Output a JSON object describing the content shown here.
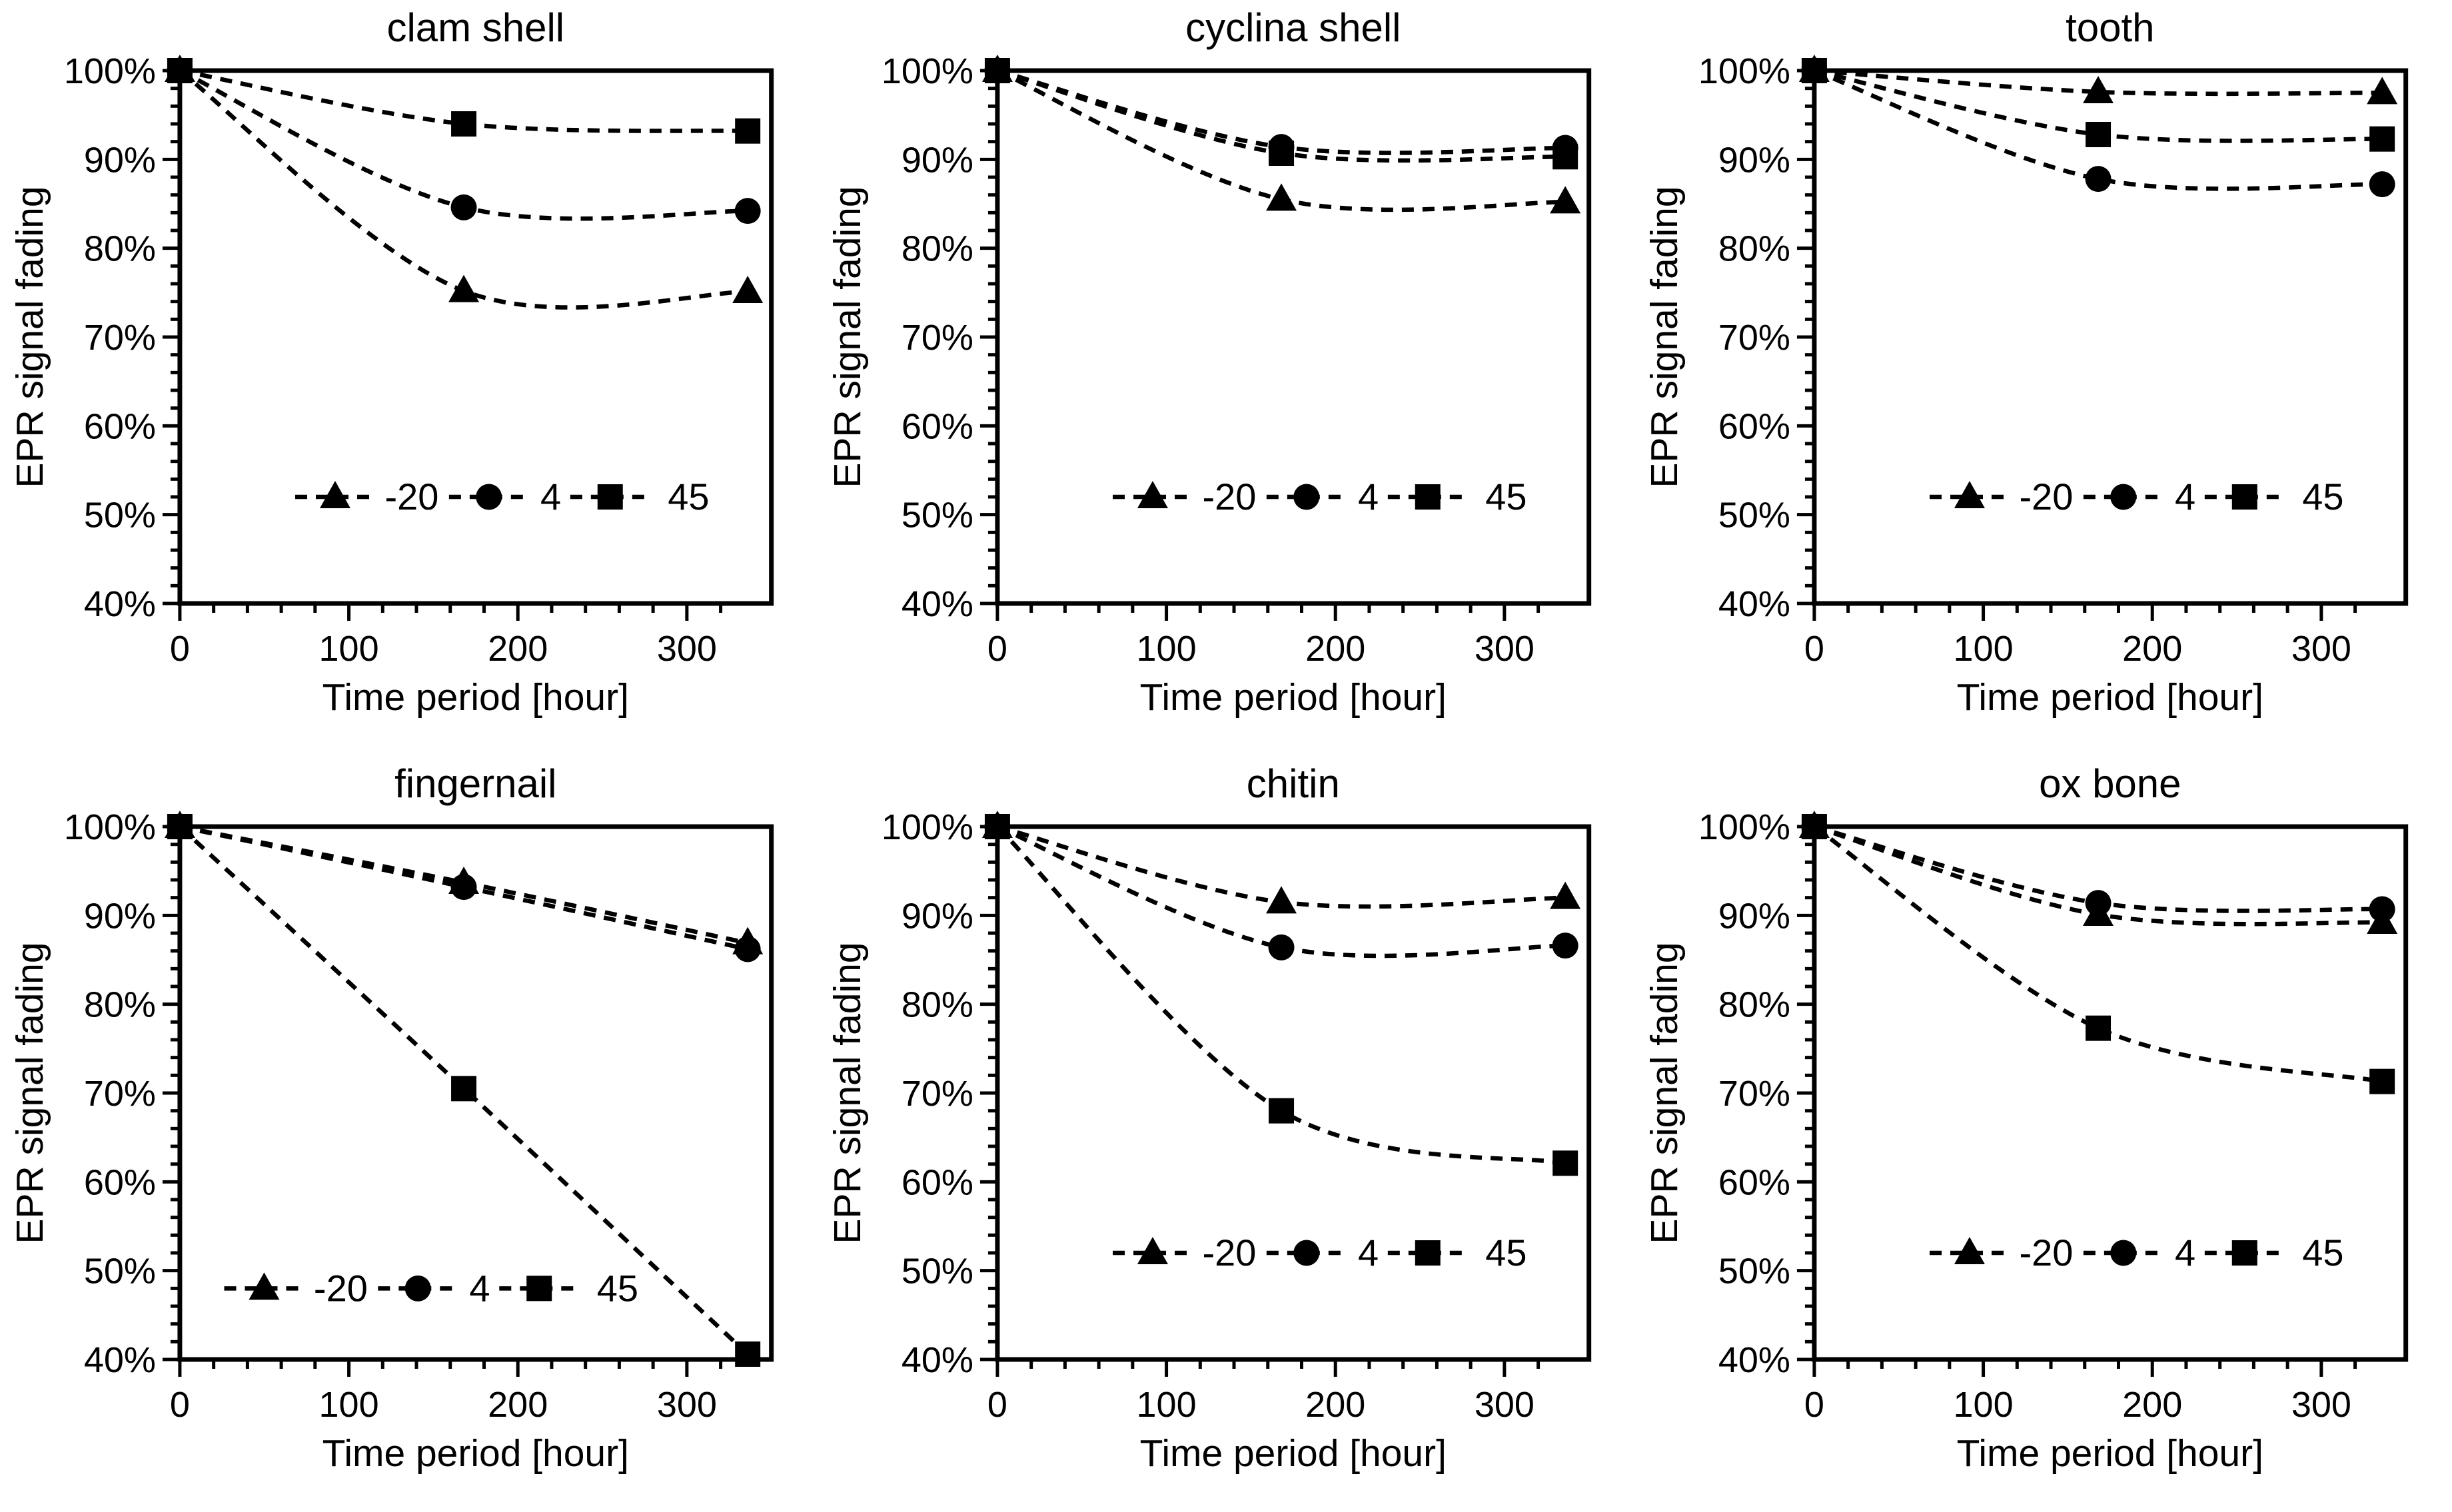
{
  "figure": {
    "background": "#ffffff",
    "ink_color": "#000000",
    "y_axis_label": "EPR signal fading",
    "x_axis_label": "Time period [hour]",
    "y_tick_labels": [
      "100%",
      "90%",
      "80%",
      "70%",
      "60%",
      "50%",
      "40%"
    ],
    "x_tick_labels": [
      "0",
      "100",
      "200",
      "300"
    ],
    "legend_labels": [
      "-20",
      "4",
      "45"
    ],
    "legend_markers": [
      "triangle",
      "circle",
      "square"
    ]
  },
  "chart_data": [
    {
      "type": "line",
      "title": "clam shell",
      "xlabel": "Time period [hour]",
      "ylabel": "EPR signal fading",
      "x": [
        0,
        168,
        336
      ],
      "xlim": [
        0,
        350
      ],
      "ylim": [
        40,
        100
      ],
      "x_major_ticks": [
        0,
        100,
        200,
        300
      ],
      "y_major_step": 10,
      "y_minor_step": 2,
      "x_minor_step": 20,
      "grid": false,
      "legend_position": "inside-bottom-center",
      "legend_y_value": 52,
      "legend_shift": 0,
      "series": [
        {
          "name": "-20",
          "marker": "triangle",
          "linestyle": "dashed",
          "values": [
            100,
            75.2,
            75.1
          ]
        },
        {
          "name": "4",
          "marker": "circle",
          "linestyle": "dashed",
          "values": [
            100,
            84.6,
            84.2
          ]
        },
        {
          "name": "45",
          "marker": "square",
          "linestyle": "dashed",
          "values": [
            100,
            94.0,
            93.2
          ]
        }
      ]
    },
    {
      "type": "line",
      "title": "cyclina shell",
      "xlabel": "Time period [hour]",
      "ylabel": "EPR signal fading",
      "x": [
        0,
        168,
        336
      ],
      "xlim": [
        0,
        350
      ],
      "ylim": [
        40,
        100
      ],
      "x_major_ticks": [
        0,
        100,
        200,
        300
      ],
      "y_major_step": 10,
      "y_minor_step": 2,
      "x_minor_step": 20,
      "grid": false,
      "legend_position": "inside-bottom-center",
      "legend_y_value": 52,
      "legend_shift": 0,
      "series": [
        {
          "name": "-20",
          "marker": "triangle",
          "linestyle": "dashed",
          "values": [
            100,
            85.5,
            85.2
          ]
        },
        {
          "name": "4",
          "marker": "circle",
          "linestyle": "dashed",
          "values": [
            100,
            91.4,
            91.3
          ]
        },
        {
          "name": "45",
          "marker": "square",
          "linestyle": "dashed",
          "values": [
            100,
            90.7,
            90.3
          ]
        }
      ]
    },
    {
      "type": "line",
      "title": "tooth",
      "xlabel": "Time period [hour]",
      "ylabel": "EPR signal fading",
      "x": [
        0,
        168,
        336
      ],
      "xlim": [
        0,
        350
      ],
      "ylim": [
        40,
        100
      ],
      "x_major_ticks": [
        0,
        100,
        200,
        300
      ],
      "y_major_step": 10,
      "y_minor_step": 2,
      "x_minor_step": 20,
      "grid": false,
      "legend_position": "inside-bottom-center",
      "legend_y_value": 52,
      "legend_shift": 0,
      "series": [
        {
          "name": "-20",
          "marker": "triangle",
          "linestyle": "dashed",
          "values": [
            100,
            97.6,
            97.5
          ]
        },
        {
          "name": "4",
          "marker": "circle",
          "linestyle": "dashed",
          "values": [
            100,
            87.8,
            87.2
          ]
        },
        {
          "name": "45",
          "marker": "square",
          "linestyle": "dashed",
          "values": [
            100,
            92.8,
            92.3
          ]
        }
      ]
    },
    {
      "type": "line",
      "title": "fingernail",
      "xlabel": "Time period [hour]",
      "ylabel": "EPR signal fading",
      "x": [
        0,
        168,
        336
      ],
      "xlim": [
        0,
        350
      ],
      "ylim": [
        40,
        100
      ],
      "x_major_ticks": [
        0,
        100,
        200,
        300
      ],
      "y_major_step": 10,
      "y_minor_step": 2,
      "x_minor_step": 20,
      "grid": false,
      "legend_position": "inside-bottom-left",
      "legend_y_value": 48,
      "legend_shift": -0.12,
      "series": [
        {
          "name": "-20",
          "marker": "triangle",
          "linestyle": "dashed",
          "values": [
            100,
            93.7,
            86.9
          ]
        },
        {
          "name": "4",
          "marker": "circle",
          "linestyle": "dashed",
          "values": [
            100,
            93.2,
            86.2
          ]
        },
        {
          "name": "45",
          "marker": "square",
          "linestyle": "dashed",
          "values": [
            100,
            70.5,
            40.6
          ]
        }
      ]
    },
    {
      "type": "line",
      "title": "chitin",
      "xlabel": "Time period [hour]",
      "ylabel": "EPR signal fading",
      "x": [
        0,
        168,
        336
      ],
      "xlim": [
        0,
        350
      ],
      "ylim": [
        40,
        100
      ],
      "x_major_ticks": [
        0,
        100,
        200,
        300
      ],
      "y_major_step": 10,
      "y_minor_step": 2,
      "x_minor_step": 20,
      "grid": false,
      "legend_position": "inside-bottom-center",
      "legend_y_value": 52,
      "legend_shift": 0,
      "series": [
        {
          "name": "-20",
          "marker": "triangle",
          "linestyle": "dashed",
          "values": [
            100,
            91.5,
            92.0
          ]
        },
        {
          "name": "4",
          "marker": "circle",
          "linestyle": "dashed",
          "values": [
            100,
            86.4,
            86.6
          ]
        },
        {
          "name": "45",
          "marker": "square",
          "linestyle": "dashed",
          "values": [
            100,
            68.0,
            62.1
          ]
        }
      ]
    },
    {
      "type": "line",
      "title": "ox bone",
      "xlabel": "Time period [hour]",
      "ylabel": "EPR signal fading",
      "x": [
        0,
        168,
        336
      ],
      "xlim": [
        0,
        350
      ],
      "ylim": [
        40,
        100
      ],
      "x_major_ticks": [
        0,
        100,
        200,
        300
      ],
      "y_major_step": 10,
      "y_minor_step": 2,
      "x_minor_step": 20,
      "grid": false,
      "legend_position": "inside-bottom-center",
      "legend_y_value": 52,
      "legend_shift": 0,
      "series": [
        {
          "name": "-20",
          "marker": "triangle",
          "linestyle": "dashed",
          "values": [
            100,
            90.1,
            89.2
          ]
        },
        {
          "name": "4",
          "marker": "circle",
          "linestyle": "dashed",
          "values": [
            100,
            91.4,
            90.7
          ]
        },
        {
          "name": "45",
          "marker": "square",
          "linestyle": "dashed",
          "values": [
            100,
            77.3,
            71.3
          ]
        }
      ]
    }
  ]
}
